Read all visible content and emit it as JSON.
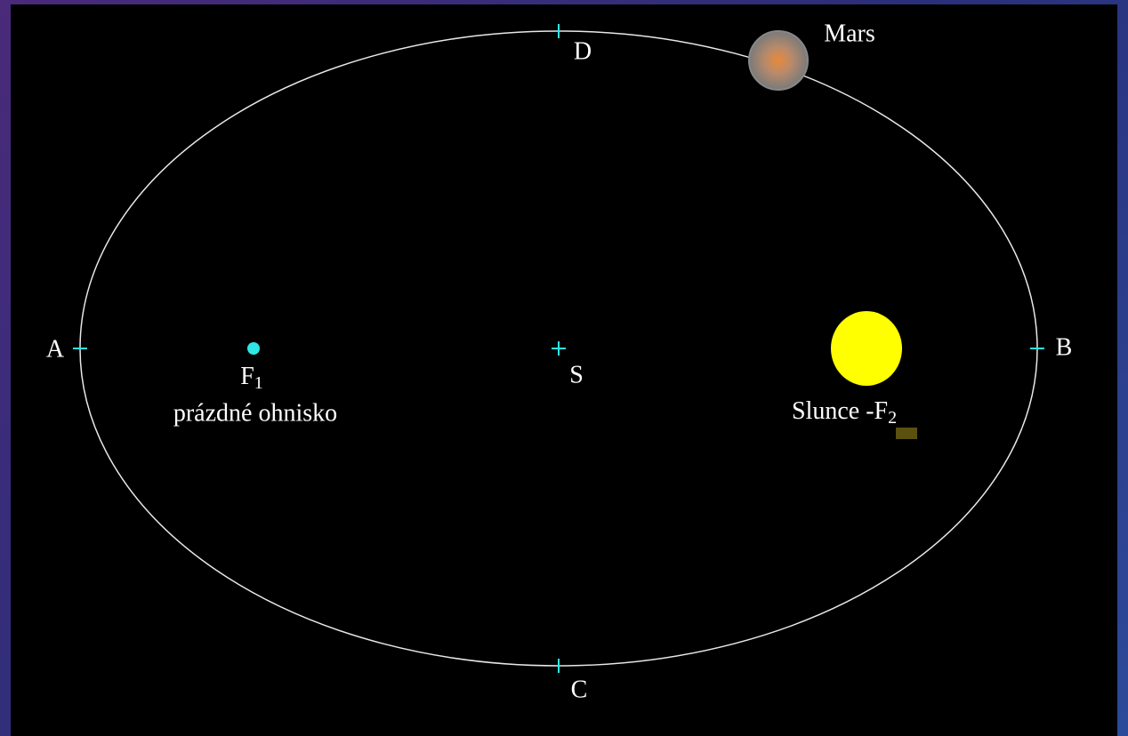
{
  "labels": {
    "a": "A",
    "b": "B",
    "c": "C",
    "d": "D",
    "s": "S",
    "f1": {
      "text": "F",
      "sub": "1"
    },
    "f1_caption": "prázdné ohnisko",
    "mars": "Mars",
    "sun": {
      "text": "Slunce -F",
      "sub": "2"
    }
  }
}
